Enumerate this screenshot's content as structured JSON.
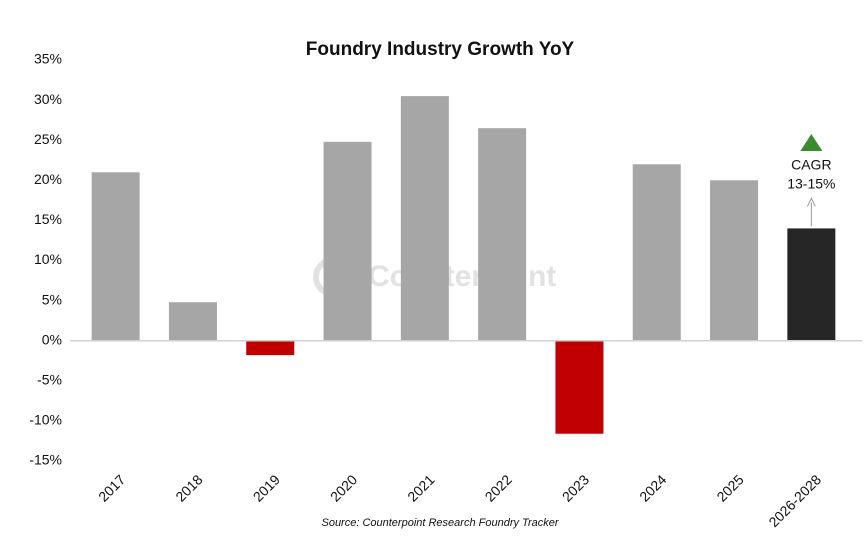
{
  "chart_data": {
    "type": "bar",
    "title": "Foundry Industry Growth YoY",
    "categories": [
      "2017",
      "2018",
      "2019",
      "2020",
      "2021",
      "2022",
      "2023",
      "2024",
      "2025",
      "2026-2028"
    ],
    "values": [
      21,
      4.8,
      -1.8,
      24.8,
      30.5,
      26.5,
      -11.6,
      22,
      20,
      14
    ],
    "colors": [
      "#a6a6a6",
      "#a6a6a6",
      "#c00000",
      "#a6a6a6",
      "#a6a6a6",
      "#a6a6a6",
      "#c00000",
      "#a6a6a6",
      "#a6a6a6",
      "#262626"
    ],
    "ylim": [
      -15,
      35
    ],
    "yticks": [
      {
        "value": -15,
        "label": "-15%"
      },
      {
        "value": -10,
        "label": "-10%"
      },
      {
        "value": -5,
        "label": "-5%"
      },
      {
        "value": 0,
        "label": "0%"
      },
      {
        "value": 5,
        "label": "5%"
      },
      {
        "value": 10,
        "label": "10%"
      },
      {
        "value": 15,
        "label": "15%"
      },
      {
        "value": 20,
        "label": "20%"
      },
      {
        "value": 25,
        "label": "25%"
      },
      {
        "value": 30,
        "label": "30%"
      },
      {
        "value": 35,
        "label": "35%"
      }
    ],
    "grid": false,
    "annotations": [
      "CAGR",
      "13-15%"
    ],
    "watermark": "Counterpoint",
    "source": "Source: Counterpoint Research Foundry Tracker"
  }
}
